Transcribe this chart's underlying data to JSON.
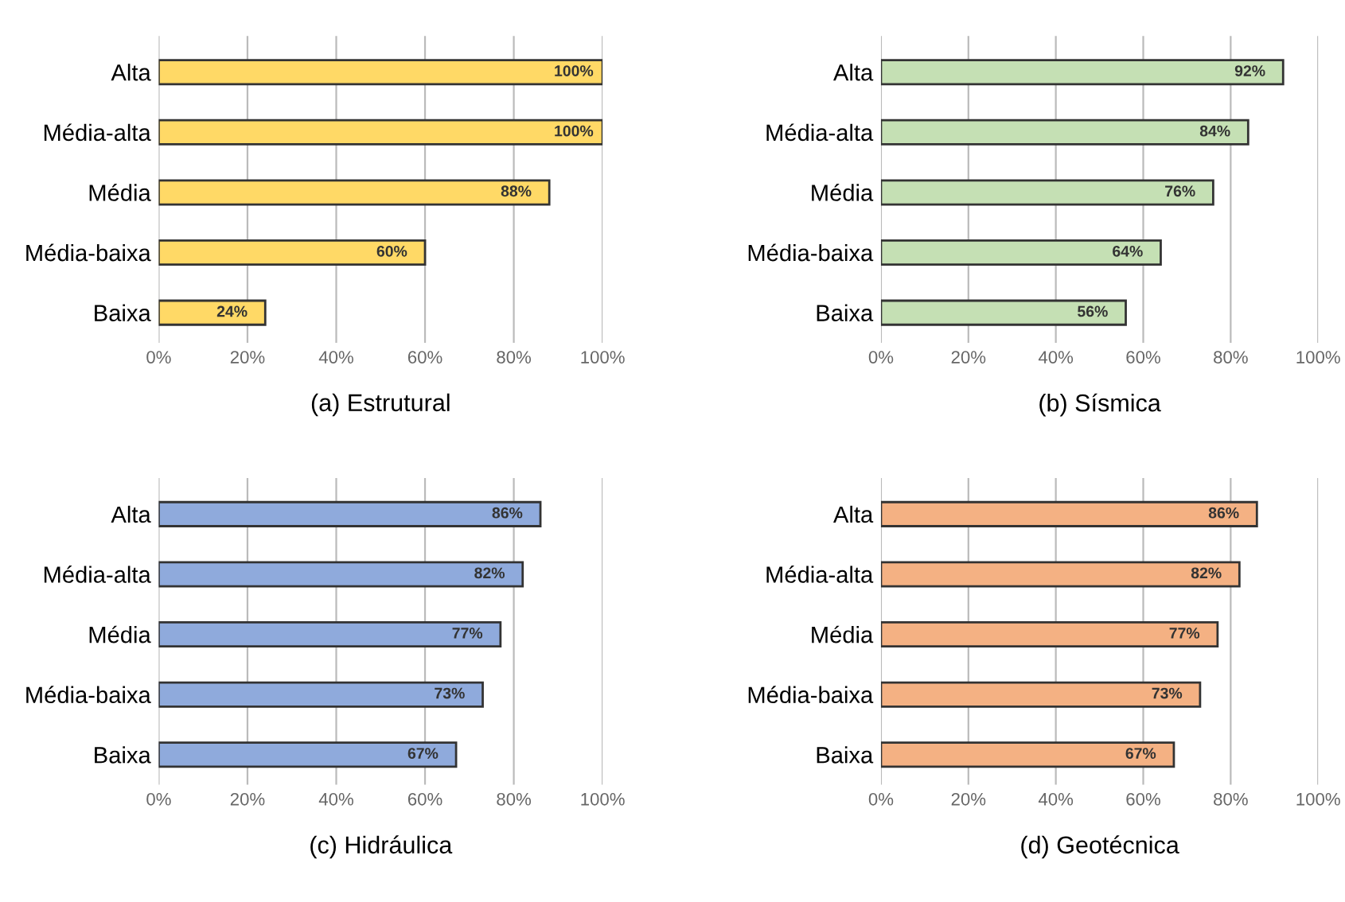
{
  "chart_data": [
    {
      "type": "bar",
      "orientation": "horizontal",
      "title": "(a) Estrutural",
      "categories": [
        "Alta",
        "Média-alta",
        "Média",
        "Média-baixa",
        "Baixa"
      ],
      "values": [
        100,
        100,
        88,
        60,
        24
      ],
      "value_labels": [
        "100%",
        "100%",
        "88%",
        "60%",
        "24%"
      ],
      "color": "#ffd966",
      "xlim": [
        0,
        100
      ],
      "xticks": [
        {
          "value": 0,
          "label": "0%"
        },
        {
          "value": 20,
          "label": "20%"
        },
        {
          "value": 40,
          "label": "40%"
        },
        {
          "value": 60,
          "label": "60%"
        },
        {
          "value": 80,
          "label": "80%"
        },
        {
          "value": 100,
          "label": "100%"
        }
      ],
      "grid": "x"
    },
    {
      "type": "bar",
      "orientation": "horizontal",
      "title": "(b) Sísmica",
      "categories": [
        "Alta",
        "Média-alta",
        "Média",
        "Média-baixa",
        "Baixa"
      ],
      "values": [
        92,
        84,
        76,
        64,
        56
      ],
      "value_labels": [
        "92%",
        "84%",
        "76%",
        "64%",
        "56%"
      ],
      "color": "#c5e0b4",
      "xlim": [
        0,
        100
      ],
      "xticks": [
        {
          "value": 0,
          "label": "0%"
        },
        {
          "value": 20,
          "label": "20%"
        },
        {
          "value": 40,
          "label": "40%"
        },
        {
          "value": 60,
          "label": "60%"
        },
        {
          "value": 80,
          "label": "80%"
        },
        {
          "value": 100,
          "label": "100%"
        }
      ],
      "grid": "x"
    },
    {
      "type": "bar",
      "orientation": "horizontal",
      "title": "(c) Hidráulica",
      "categories": [
        "Alta",
        "Média-alta",
        "Média",
        "Média-baixa",
        "Baixa"
      ],
      "values": [
        86,
        82,
        77,
        73,
        67
      ],
      "value_labels": [
        "86%",
        "82%",
        "77%",
        "73%",
        "67%"
      ],
      "color": "#8faadc",
      "xlim": [
        0,
        100
      ],
      "xticks": [
        {
          "value": 0,
          "label": "0%"
        },
        {
          "value": 20,
          "label": "20%"
        },
        {
          "value": 40,
          "label": "40%"
        },
        {
          "value": 60,
          "label": "60%"
        },
        {
          "value": 80,
          "label": "80%"
        },
        {
          "value": 100,
          "label": "100%"
        }
      ],
      "grid": "x"
    },
    {
      "type": "bar",
      "orientation": "horizontal",
      "title": "(d) Geotécnica",
      "categories": [
        "Alta",
        "Média-alta",
        "Média",
        "Média-baixa",
        "Baixa"
      ],
      "values": [
        86,
        82,
        77,
        73,
        67
      ],
      "value_labels": [
        "86%",
        "82%",
        "77%",
        "73%",
        "67%"
      ],
      "color": "#f4b183",
      "xlim": [
        0,
        100
      ],
      "xticks": [
        {
          "value": 0,
          "label": "0%"
        },
        {
          "value": 20,
          "label": "20%"
        },
        {
          "value": 40,
          "label": "40%"
        },
        {
          "value": 60,
          "label": "60%"
        },
        {
          "value": 80,
          "label": "80%"
        },
        {
          "value": 100,
          "label": "100%"
        }
      ],
      "grid": "x"
    }
  ]
}
